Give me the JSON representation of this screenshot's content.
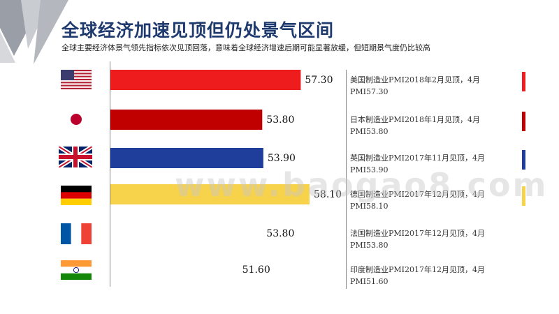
{
  "header": {
    "title": "全球经济加速见顶但仍处景气区间",
    "subtitle": "全球主要经济体景气领先指标依次见顶回落，意味着全球经济增速后期可能显著放缓，但短期景气度仍比较高"
  },
  "watermark": "www.baogao8.com",
  "chart_data": {
    "type": "bar",
    "orientation": "horizontal",
    "categories": [
      "美国",
      "日本",
      "英国",
      "德国",
      "法国",
      "印度"
    ],
    "values": [
      57.3,
      53.8,
      53.9,
      58.1,
      53.8,
      51.6
    ],
    "value_labels": [
      "57.30",
      "53.80",
      "53.90",
      "58.10",
      "53.80",
      "51.60"
    ],
    "colors": [
      "#ee1c1c",
      "#c00000",
      "#1f3e9c",
      "#f7d24b",
      null,
      null
    ],
    "annotations": [
      {
        "line1": "美国制造业PMI2018年2月见顶，4月",
        "line2": "PMI57.30"
      },
      {
        "line1": "日本制造业PMI2018年1月见顶，4月",
        "line2": "PMI53.80"
      },
      {
        "line1": "英国制造业PMI2017年11月见顶，4月",
        "line2": "PMI53.90"
      },
      {
        "line1": "德国制造业PMI2017年12月见顶，4月",
        "line2": "PMI58.10"
      },
      {
        "line1": "法国制造业PMI2017年12月见顶，4月",
        "line2": "PMI53.80"
      },
      {
        "line1": "印度制造业PMI2017年12月见顶，4月",
        "line2": "PMI51.60"
      }
    ],
    "flags": [
      "us-flag",
      "japan-flag",
      "uk-flag",
      "germany-flag",
      "france-flag",
      "india-flag"
    ],
    "grid": false,
    "legend": "none"
  }
}
